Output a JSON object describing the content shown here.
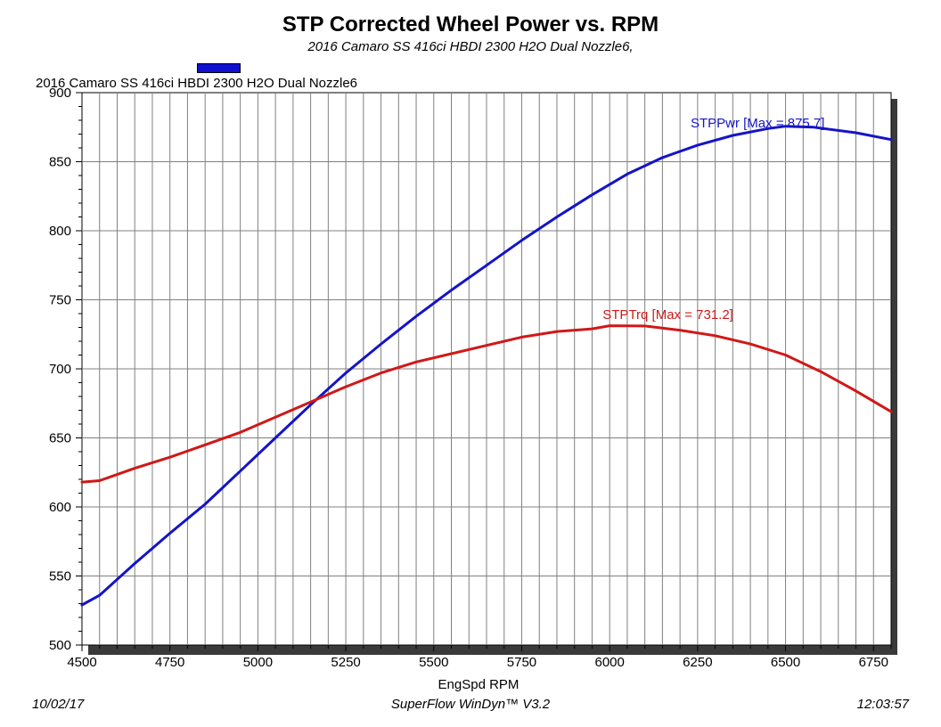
{
  "chart_data": {
    "type": "line",
    "title": "STP Corrected Wheel Power vs. RPM",
    "subtitle": "2016 Camaro SS 416ci HBDI 2300 H2O Dual Nozzle6,",
    "legend_label": "2016 Camaro SS 416ci HBDI 2300 H2O Dual Nozzle6",
    "legend_color": "#1010d0",
    "xlabel": "EngSpd RPM",
    "ylabel": "",
    "xlim": [
      4500,
      6800
    ],
    "ylim": [
      500,
      900
    ],
    "x_ticks": [
      "4500",
      "4750",
      "5000",
      "5250",
      "5500",
      "5750",
      "6000",
      "6250",
      "6500",
      "6750"
    ],
    "y_ticks": [
      "500",
      "550",
      "600",
      "650",
      "700",
      "750",
      "800",
      "850",
      "900"
    ],
    "grid": true,
    "series": [
      {
        "name": "STPPwr",
        "color": "#1414c8",
        "label": "STPPwr [Max = 875.7]",
        "label_at": [
          6230,
          875
        ],
        "x": [
          4500,
          4550,
          4650,
          4750,
          4850,
          4950,
          5050,
          5150,
          5250,
          5350,
          5450,
          5550,
          5650,
          5750,
          5850,
          5950,
          6050,
          6150,
          6250,
          6350,
          6450,
          6500,
          6580,
          6700,
          6800
        ],
        "y": [
          529,
          536,
          559,
          581,
          602,
          626,
          650,
          674,
          697,
          718,
          738,
          757,
          775,
          793,
          810,
          826,
          841,
          853,
          862,
          869,
          874,
          875.7,
          875,
          871,
          866
        ]
      },
      {
        "name": "STPTrq",
        "color": "#d01818",
        "label": "STPTrq [Max = 731.2]",
        "label_at": [
          5980,
          736
        ],
        "x": [
          4500,
          4550,
          4650,
          4750,
          4850,
          4950,
          5050,
          5150,
          5250,
          5350,
          5450,
          5550,
          5650,
          5750,
          5850,
          5950,
          6000,
          6100,
          6200,
          6300,
          6400,
          6500,
          6600,
          6700,
          6800
        ],
        "y": [
          618,
          619,
          628,
          636,
          645,
          654,
          665,
          676,
          687,
          697,
          705,
          711,
          717,
          723,
          727,
          729,
          731.2,
          731,
          728,
          724,
          718,
          710,
          698,
          684,
          669
        ]
      }
    ]
  },
  "footer": {
    "date": "10/02/17",
    "software": "SuperFlow WinDyn™ V3.2",
    "time": "12:03:57"
  }
}
